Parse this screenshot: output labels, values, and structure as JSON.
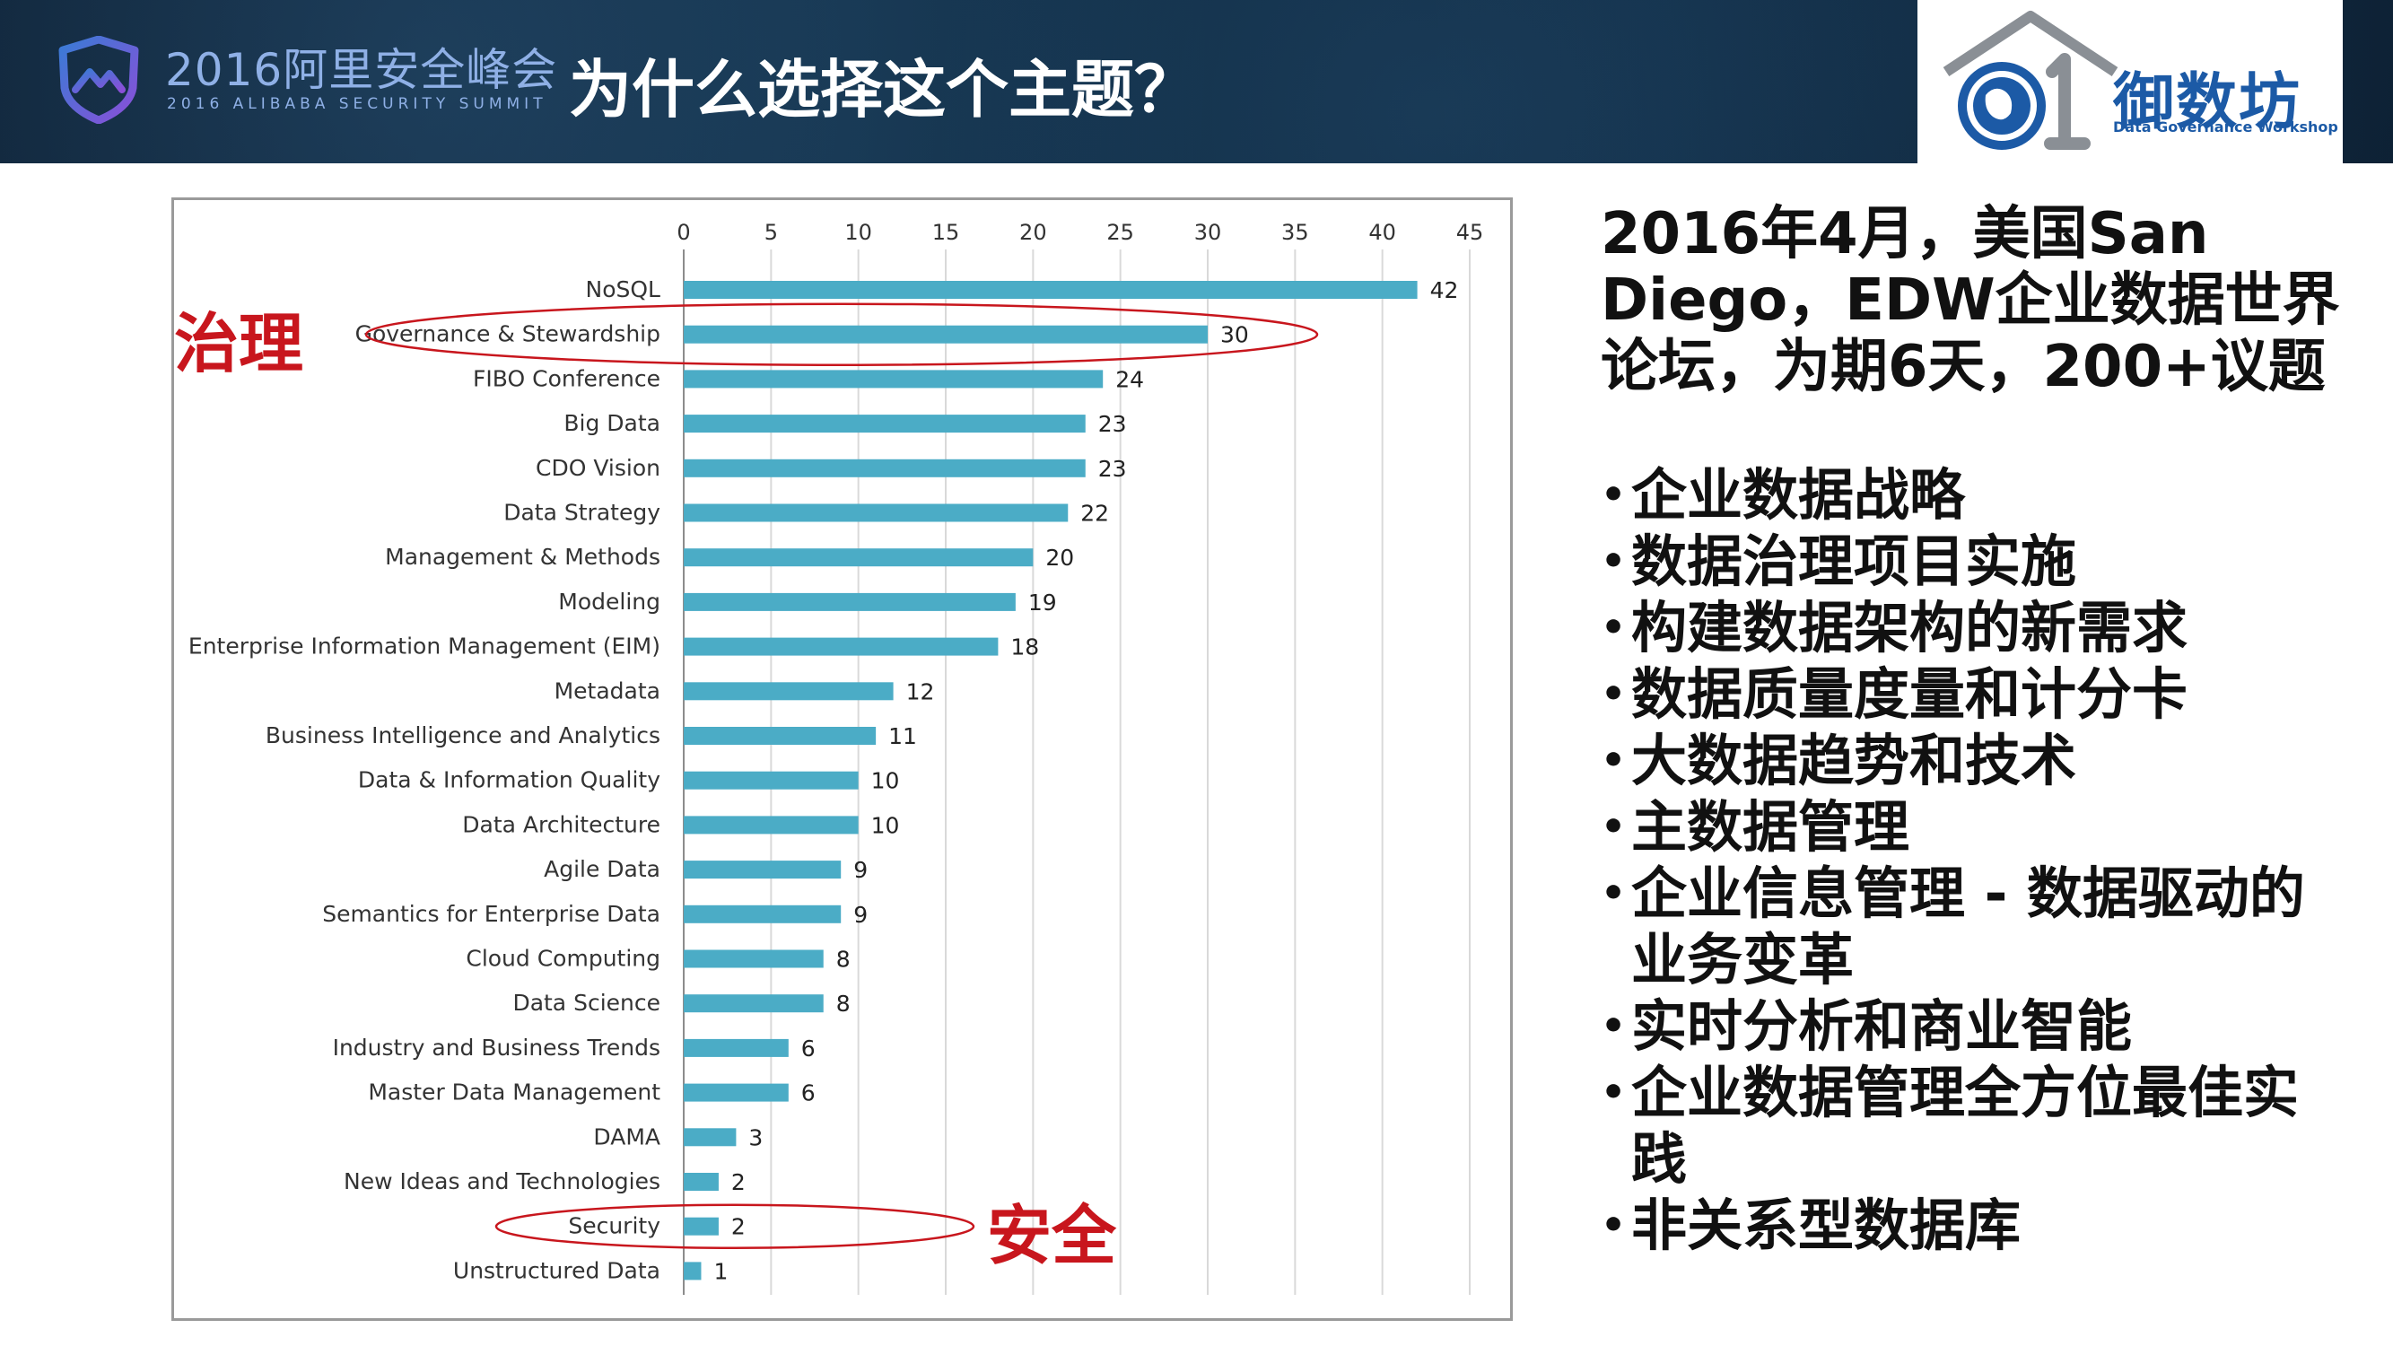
{
  "header": {
    "brand_main": "2016阿里安全峰会",
    "brand_sub": "2016 ALIBABA SECURITY SUMMIT",
    "title": "为什么选择这个主题？",
    "partner_name": "御数坊",
    "partner_tagline": "Data Governance Workshop"
  },
  "annotations": {
    "governance": "治理",
    "security": "安全"
  },
  "intro": "2016年4月，美国San Diego，EDW企业数据世界论坛，为期6天，200+议题",
  "topics": [
    "企业数据战略",
    "数据治理项目实施",
    "构建数据架构的新需求",
    "数据质量度量和计分卡",
    "大数据趋势和技术",
    "主数据管理",
    "企业信息管理 - 数据驱动的业务变革",
    "实时分析和商业智能",
    "企业数据管理全方位最佳实践",
    "非关系型数据库"
  ],
  "colors": {
    "bar": "#4bacc6",
    "accent": "#c8161d",
    "grid": "#d9d9d9"
  },
  "chart_data": {
    "type": "bar",
    "orientation": "horizontal",
    "categories": [
      "NoSQL",
      "Governance & Stewardship",
      "FIBO Conference",
      "Big Data",
      "CDO Vision",
      "Data Strategy",
      "Management & Methods",
      "Modeling",
      "Enterprise Information Management (EIM)",
      "Metadata",
      "Business Intelligence and Analytics",
      "Data & Information Quality",
      "Data Architecture",
      "Agile Data",
      "Semantics for Enterprise Data",
      "Cloud Computing",
      "Data Science",
      "Industry and Business Trends",
      "Master Data Management",
      "DAMA",
      "New Ideas and Technologies",
      "Security",
      "Unstructured Data"
    ],
    "values": [
      42,
      30,
      24,
      23,
      23,
      22,
      20,
      19,
      18,
      12,
      11,
      10,
      10,
      9,
      9,
      8,
      8,
      6,
      6,
      3,
      2,
      2,
      1
    ],
    "xlim": [
      0,
      45
    ],
    "xticks": [
      0,
      5,
      10,
      15,
      20,
      25,
      30,
      35,
      40,
      45
    ],
    "x_axis_position": "top",
    "grid": true,
    "data_labels": true,
    "highlighted": [
      "Governance & Stewardship",
      "Security"
    ]
  }
}
